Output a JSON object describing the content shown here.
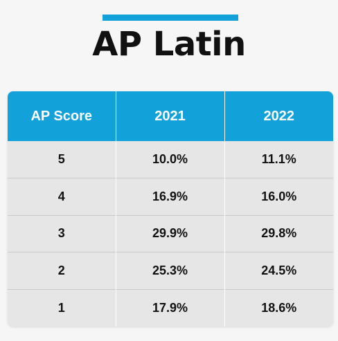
{
  "title": "AP Latin",
  "colors": {
    "accent": "#12a1d9",
    "header_text": "#ffffff",
    "cell_bg": "#e6e6e6",
    "text": "#111111"
  },
  "chart_data": {
    "type": "table",
    "title": "AP Latin",
    "columns": [
      "AP Score",
      "2021",
      "2022"
    ],
    "rows": [
      [
        "5",
        "10.0%",
        "11.1%"
      ],
      [
        "4",
        "16.9%",
        "16.0%"
      ],
      [
        "3",
        "29.9%",
        "29.8%"
      ],
      [
        "2",
        "25.3%",
        "24.5%"
      ],
      [
        "1",
        "17.9%",
        "18.6%"
      ]
    ],
    "series": [
      {
        "name": "2021",
        "values": [
          10.0,
          16.9,
          29.9,
          25.3,
          17.9
        ]
      },
      {
        "name": "2022",
        "values": [
          11.1,
          16.0,
          29.8,
          24.5,
          18.6
        ]
      }
    ],
    "categories": [
      "5",
      "4",
      "3",
      "2",
      "1"
    ]
  }
}
